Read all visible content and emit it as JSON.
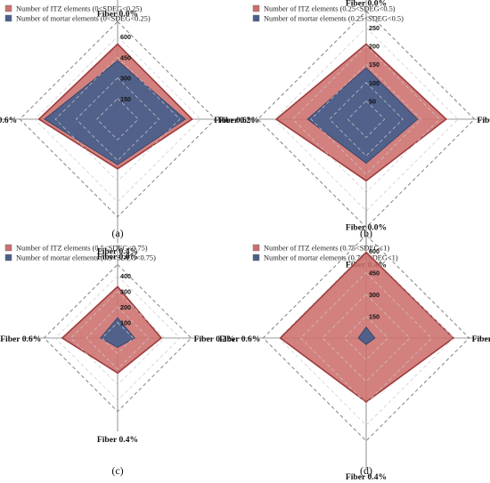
{
  "figure": {
    "panels": [
      {
        "id": "a",
        "caption": "(a)"
      },
      {
        "id": "b",
        "caption": "(b)"
      },
      {
        "id": "c",
        "caption": "(c)"
      },
      {
        "id": "d",
        "caption": "(d)"
      }
    ]
  },
  "chart_data": [
    {
      "type": "radar",
      "caption": "(a)",
      "categories": [
        "Fiber 0.0%",
        "Fiber 0.2%",
        "Fiber 0.4%",
        "Fiber 0.6%"
      ],
      "range": [
        0,
        600
      ],
      "ticks": [
        150,
        300,
        450,
        600
      ],
      "tick_labels": [
        "150",
        "300",
        "450",
        "600"
      ],
      "series": [
        {
          "name": "Number of ITZ elements (0<SDEG<0.25)",
          "values": [
            545,
            540,
            360,
            570
          ],
          "color": "#cd6f6d"
        },
        {
          "name": "Number of mortar elements (0<SDEG<0.25)",
          "values": [
            425,
            490,
            330,
            530
          ],
          "color": "#4a5f8b"
        }
      ]
    },
    {
      "type": "radar",
      "caption": "(b)",
      "categories": [
        "Fiber 0.0%",
        "Fiber 0.2%",
        "Fiber 0.4%",
        "Fiber 0.6%"
      ],
      "range": [
        0,
        250
      ],
      "ticks": [
        50,
        100,
        150,
        200,
        250
      ],
      "tick_labels": [
        "50",
        "100",
        "150",
        "200",
        "250"
      ],
      "series": [
        {
          "name": "Number of ITZ elements (0.25<SDEG<0.5)",
          "values": [
            205,
            218,
            168,
            245
          ],
          "color": "#cd6f6d"
        },
        {
          "name": "Number of mortar elements (0.25<SDEG<0.5)",
          "values": [
            140,
            140,
            120,
            160
          ],
          "color": "#4a5f8b"
        }
      ]
    },
    {
      "type": "radar",
      "caption": "(c)",
      "categories": [
        "Fiber 0.0%",
        "Fiber 0.2%",
        "Fiber 0.4%",
        "Fiber 0.6%"
      ],
      "range": [
        0,
        400
      ],
      "ticks": [
        100,
        200,
        300,
        400
      ],
      "tick_labels": [
        "100",
        "200",
        "300",
        "400"
      ],
      "series": [
        {
          "name": "Number of ITZ elements (0.5<SDEG<0.75)",
          "values": [
            330,
            280,
            225,
            355
          ],
          "color": "#cd6f6d"
        },
        {
          "name": "Number of mortar elements (0.5<SDEG<0.75)",
          "values": [
            130,
            110,
            60,
            110
          ],
          "color": "#4a5f8b"
        }
      ]
    },
    {
      "type": "radar",
      "caption": "(d)",
      "categories": [
        "Fiber 0.0%",
        "Fiber 0.2%",
        "Fiber 0.4%",
        "Fiber 0.6%"
      ],
      "range": [
        0,
        600
      ],
      "ticks": [
        150,
        300,
        450,
        600
      ],
      "tick_labels": [
        "150",
        "300",
        "450",
        "600"
      ],
      "series": [
        {
          "name": "Number of ITZ elements (0.75<SDEG<1)",
          "values": [
            590,
            600,
            440,
            590
          ],
          "color": "#cd6f6d"
        },
        {
          "name": "Number of mortar elements (0.75<SDEG<1)",
          "values": [
            75,
            60,
            45,
            55
          ],
          "color": "#4a5f8b"
        }
      ]
    }
  ]
}
